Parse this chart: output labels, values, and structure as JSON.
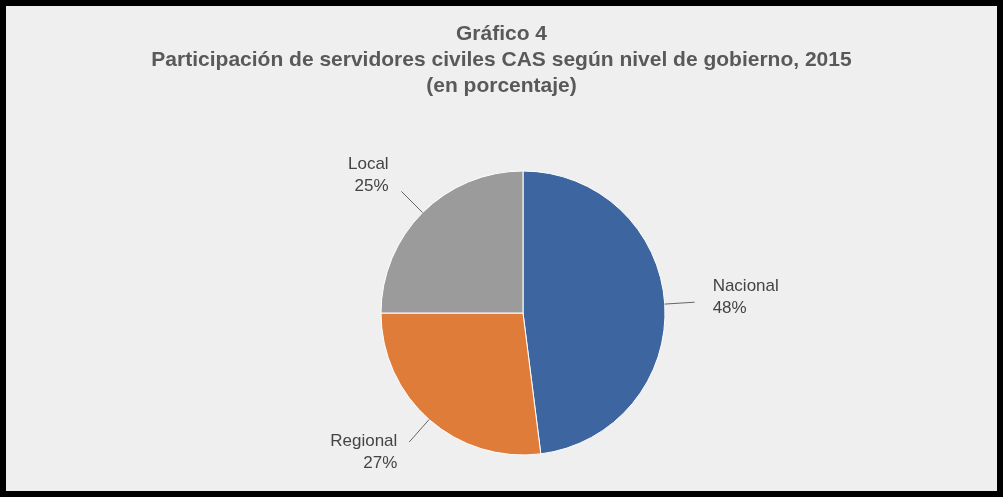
{
  "chart_data": {
    "type": "pie",
    "title": "Gráfico 4",
    "subtitle": "Participación de servidores civiles CAS según nivel de gobierno, 2015",
    "annotations": [
      "(en porcentaje)"
    ],
    "categories": [
      "Nacional",
      "Regional",
      "Local"
    ],
    "values": [
      48,
      27,
      25
    ],
    "colors": [
      "#3d65a0",
      "#e07c3a",
      "#9b9b9b"
    ],
    "value_labels": [
      "48%",
      "27%",
      "25%"
    ],
    "legend": false
  }
}
